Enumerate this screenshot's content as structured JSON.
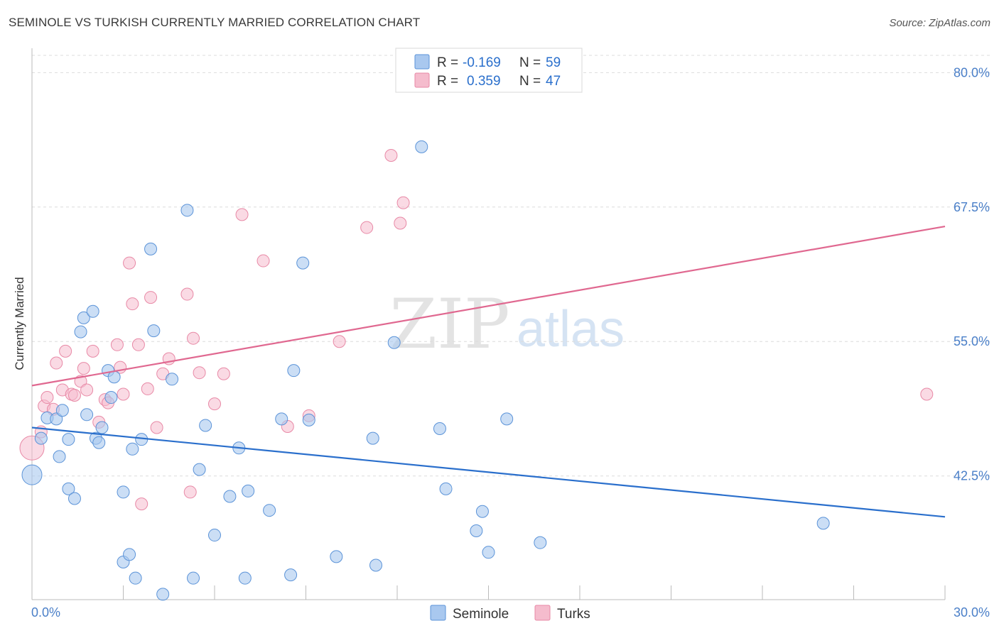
{
  "header": {
    "title": "SEMINOLE VS TURKISH CURRENTLY MARRIED CORRELATION CHART",
    "source": "Source: ZipAtlas.com"
  },
  "watermark": {
    "zip": "ZIP",
    "atlas": "atlas"
  },
  "legend": {
    "rows": [
      {
        "r_label": "R =",
        "r_value": "-0.169",
        "n_label": "N =",
        "n_value": "59"
      },
      {
        "r_label": "R =",
        "r_value": "0.359",
        "n_label": "N =",
        "n_value": "47"
      }
    ]
  },
  "bottom_legend": {
    "seminole": "Seminole",
    "turks": "Turks"
  },
  "colors": {
    "seminole_fill": "#a9c8ef",
    "seminole_stroke": "#5b93d8",
    "seminole_line": "#2a6fcc",
    "turks_fill": "#f5bccd",
    "turks_stroke": "#e889a6",
    "turks_line": "#e06890",
    "grid": "#dcdcdc",
    "tick_text": "#4a7fc8",
    "value_text": "#2a6fcc"
  },
  "chart_data": {
    "type": "scatter",
    "title": "SEMINOLE VS TURKISH CURRENTLY MARRIED CORRELATION CHART",
    "xlabel": "",
    "ylabel": "Currently Married",
    "xlim": [
      0.0,
      30.0
    ],
    "ylim": [
      31.0,
      82.0
    ],
    "x_tick_labels": [
      {
        "value": 0.0,
        "label": "0.0%"
      },
      {
        "value": 30.0,
        "label": "30.0%"
      }
    ],
    "y_tick_labels": [
      {
        "value": 80.0,
        "label": "80.0%"
      },
      {
        "value": 67.5,
        "label": "67.5%"
      },
      {
        "value": 55.0,
        "label": "55.0%"
      },
      {
        "value": 42.5,
        "label": "42.5%"
      }
    ],
    "y_gridlines": [
      80.0,
      67.5,
      55.0,
      42.5
    ],
    "series": [
      {
        "name": "Seminole",
        "R": -0.169,
        "N": 59,
        "trend": {
          "x0": 0.0,
          "y0": 47.0,
          "x1": 30.0,
          "y1": 38.7
        },
        "points": [
          {
            "x": 0.0,
            "y": 42.6,
            "big": true
          },
          {
            "x": 0.3,
            "y": 46.0
          },
          {
            "x": 0.5,
            "y": 47.9
          },
          {
            "x": 0.8,
            "y": 47.8
          },
          {
            "x": 0.9,
            "y": 44.3
          },
          {
            "x": 1.0,
            "y": 48.6
          },
          {
            "x": 1.2,
            "y": 41.3
          },
          {
            "x": 1.2,
            "y": 45.9
          },
          {
            "x": 1.4,
            "y": 40.4
          },
          {
            "x": 1.6,
            "y": 55.9
          },
          {
            "x": 1.7,
            "y": 57.2
          },
          {
            "x": 1.8,
            "y": 48.2
          },
          {
            "x": 2.0,
            "y": 57.8
          },
          {
            "x": 2.1,
            "y": 46.0
          },
          {
            "x": 2.2,
            "y": 45.6
          },
          {
            "x": 2.3,
            "y": 47.0
          },
          {
            "x": 2.5,
            "y": 52.3
          },
          {
            "x": 2.6,
            "y": 49.8
          },
          {
            "x": 2.7,
            "y": 51.7
          },
          {
            "x": 3.0,
            "y": 41.0
          },
          {
            "x": 3.0,
            "y": 34.5
          },
          {
            "x": 3.2,
            "y": 35.2
          },
          {
            "x": 3.3,
            "y": 45.0
          },
          {
            "x": 3.4,
            "y": 33.0
          },
          {
            "x": 3.6,
            "y": 45.9
          },
          {
            "x": 3.9,
            "y": 63.6
          },
          {
            "x": 4.0,
            "y": 56.0
          },
          {
            "x": 4.3,
            "y": 31.5
          },
          {
            "x": 4.6,
            "y": 51.5
          },
          {
            "x": 5.1,
            "y": 67.2
          },
          {
            "x": 5.3,
            "y": 33.0
          },
          {
            "x": 5.5,
            "y": 43.1
          },
          {
            "x": 5.7,
            "y": 47.2
          },
          {
            "x": 6.0,
            "y": 37.0
          },
          {
            "x": 6.5,
            "y": 40.6
          },
          {
            "x": 6.8,
            "y": 45.1
          },
          {
            "x": 7.0,
            "y": 33.0
          },
          {
            "x": 7.1,
            "y": 41.1
          },
          {
            "x": 7.8,
            "y": 39.3
          },
          {
            "x": 8.2,
            "y": 47.8
          },
          {
            "x": 8.5,
            "y": 33.3
          },
          {
            "x": 8.6,
            "y": 52.3
          },
          {
            "x": 8.9,
            "y": 62.3
          },
          {
            "x": 9.1,
            "y": 47.7
          },
          {
            "x": 10.0,
            "y": 35.0
          },
          {
            "x": 11.2,
            "y": 46.0
          },
          {
            "x": 11.3,
            "y": 34.2
          },
          {
            "x": 11.9,
            "y": 54.9
          },
          {
            "x": 12.8,
            "y": 73.1
          },
          {
            "x": 13.4,
            "y": 46.9
          },
          {
            "x": 13.6,
            "y": 41.3
          },
          {
            "x": 14.6,
            "y": 37.4
          },
          {
            "x": 14.8,
            "y": 39.2
          },
          {
            "x": 15.0,
            "y": 35.4
          },
          {
            "x": 15.6,
            "y": 47.8
          },
          {
            "x": 16.7,
            "y": 36.3
          },
          {
            "x": 26.0,
            "y": 38.1
          }
        ]
      },
      {
        "name": "Turks",
        "R": 0.359,
        "N": 47,
        "trend": {
          "x0": 0.0,
          "y0": 50.9,
          "x1": 30.0,
          "y1": 65.7
        },
        "points": [
          {
            "x": 0.0,
            "y": 45.1,
            "big": true
          },
          {
            "x": 0.3,
            "y": 46.6
          },
          {
            "x": 0.4,
            "y": 49.0
          },
          {
            "x": 0.5,
            "y": 49.8
          },
          {
            "x": 0.7,
            "y": 48.7
          },
          {
            "x": 0.8,
            "y": 53.0
          },
          {
            "x": 1.0,
            "y": 50.5
          },
          {
            "x": 1.1,
            "y": 54.1
          },
          {
            "x": 1.3,
            "y": 50.1
          },
          {
            "x": 1.4,
            "y": 50.0
          },
          {
            "x": 1.6,
            "y": 51.3
          },
          {
            "x": 1.7,
            "y": 52.5
          },
          {
            "x": 1.8,
            "y": 50.5
          },
          {
            "x": 2.0,
            "y": 54.1
          },
          {
            "x": 2.2,
            "y": 47.5
          },
          {
            "x": 2.4,
            "y": 49.6
          },
          {
            "x": 2.5,
            "y": 49.3
          },
          {
            "x": 2.8,
            "y": 54.7
          },
          {
            "x": 2.9,
            "y": 52.6
          },
          {
            "x": 3.0,
            "y": 50.1
          },
          {
            "x": 3.2,
            "y": 62.3
          },
          {
            "x": 3.3,
            "y": 58.5
          },
          {
            "x": 3.5,
            "y": 54.7
          },
          {
            "x": 3.6,
            "y": 39.9
          },
          {
            "x": 3.8,
            "y": 50.6
          },
          {
            "x": 3.9,
            "y": 59.1
          },
          {
            "x": 4.1,
            "y": 47.0
          },
          {
            "x": 4.3,
            "y": 52.0
          },
          {
            "x": 4.5,
            "y": 53.4
          },
          {
            "x": 5.1,
            "y": 59.4
          },
          {
            "x": 5.2,
            "y": 41.0
          },
          {
            "x": 5.3,
            "y": 55.3
          },
          {
            "x": 5.5,
            "y": 52.1
          },
          {
            "x": 6.0,
            "y": 49.2
          },
          {
            "x": 6.3,
            "y": 52.0
          },
          {
            "x": 6.9,
            "y": 66.8
          },
          {
            "x": 7.6,
            "y": 62.5
          },
          {
            "x": 8.4,
            "y": 47.1
          },
          {
            "x": 9.1,
            "y": 48.1
          },
          {
            "x": 10.1,
            "y": 55.0
          },
          {
            "x": 11.0,
            "y": 65.6
          },
          {
            "x": 11.8,
            "y": 72.3
          },
          {
            "x": 12.1,
            "y": 66.0
          },
          {
            "x": 12.2,
            "y": 67.9
          },
          {
            "x": 29.4,
            "y": 50.1
          }
        ]
      }
    ]
  }
}
